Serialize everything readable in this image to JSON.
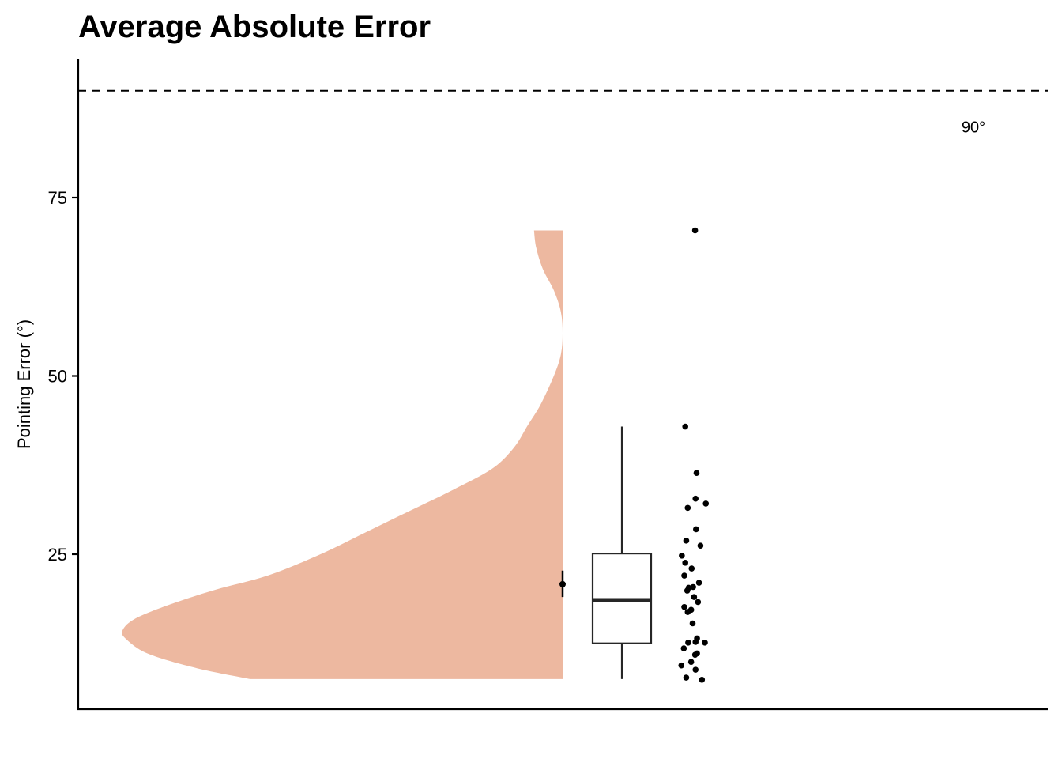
{
  "chart_data": {
    "type": "raincloud",
    "title": "Average Absolute Error",
    "xlabel": "",
    "ylabel": "Pointing Error (°)",
    "ylim": [
      4,
      95
    ],
    "yticks": [
      25,
      50,
      75
    ],
    "grid": false,
    "reference_line": {
      "y": 90,
      "label": "90°",
      "style": "dashed"
    },
    "colors": {
      "density_fill": "#EDB8A0",
      "points": "#000000",
      "box_stroke": "#262626"
    },
    "density_profile": [
      {
        "y": 7.5,
        "width": 0.71
      },
      {
        "y": 9.0,
        "width": 0.83
      },
      {
        "y": 11.0,
        "width": 0.94
      },
      {
        "y": 13.0,
        "width": 0.99
      },
      {
        "y": 14.3,
        "width": 1.0
      },
      {
        "y": 16.0,
        "width": 0.97
      },
      {
        "y": 18.0,
        "width": 0.89
      },
      {
        "y": 20.0,
        "width": 0.79
      },
      {
        "y": 22.0,
        "width": 0.67
      },
      {
        "y": 25.0,
        "width": 0.55
      },
      {
        "y": 28.0,
        "width": 0.45
      },
      {
        "y": 31.0,
        "width": 0.35
      },
      {
        "y": 34.0,
        "width": 0.25
      },
      {
        "y": 37.0,
        "width": 0.16
      },
      {
        "y": 40.0,
        "width": 0.11
      },
      {
        "y": 43.0,
        "width": 0.08
      },
      {
        "y": 46.0,
        "width": 0.05
      },
      {
        "y": 50.0,
        "width": 0.02
      },
      {
        "y": 53.0,
        "width": 0.004
      },
      {
        "y": 56.0,
        "width": 0.0
      },
      {
        "y": 59.0,
        "width": 0.004
      },
      {
        "y": 62.0,
        "width": 0.02
      },
      {
        "y": 65.0,
        "width": 0.045
      },
      {
        "y": 68.0,
        "width": 0.06
      },
      {
        "y": 70.4,
        "width": 0.065
      }
    ],
    "mean": {
      "value": 20.8,
      "ci": [
        19.0,
        22.7
      ]
    },
    "boxplot": {
      "min": 7.5,
      "q1": 12.5,
      "median": 18.6,
      "q3": 25.1,
      "max": 42.9
    },
    "points": [
      {
        "jitter": 0.3,
        "y": 70.4
      },
      {
        "jitter": 0.1,
        "y": 42.9
      },
      {
        "jitter": 0.33,
        "y": 36.4
      },
      {
        "jitter": 0.31,
        "y": 32.8
      },
      {
        "jitter": 0.52,
        "y": 32.1
      },
      {
        "jitter": 0.15,
        "y": 31.5
      },
      {
        "jitter": 0.32,
        "y": 28.5
      },
      {
        "jitter": 0.41,
        "y": 26.2
      },
      {
        "jitter": 0.12,
        "y": 26.9
      },
      {
        "jitter": 0.03,
        "y": 24.8
      },
      {
        "jitter": 0.1,
        "y": 23.8
      },
      {
        "jitter": 0.23,
        "y": 23.0
      },
      {
        "jitter": 0.08,
        "y": 22.0
      },
      {
        "jitter": 0.38,
        "y": 21.0
      },
      {
        "jitter": 0.17,
        "y": 20.3
      },
      {
        "jitter": 0.26,
        "y": 20.4
      },
      {
        "jitter": 0.14,
        "y": 19.9
      },
      {
        "jitter": 0.28,
        "y": 19.0
      },
      {
        "jitter": 0.36,
        "y": 18.3
      },
      {
        "jitter": 0.08,
        "y": 17.6
      },
      {
        "jitter": 0.22,
        "y": 17.2
      },
      {
        "jitter": 0.15,
        "y": 16.9
      },
      {
        "jitter": 0.25,
        "y": 15.3
      },
      {
        "jitter": 0.34,
        "y": 13.2
      },
      {
        "jitter": 0.16,
        "y": 12.6
      },
      {
        "jitter": 0.31,
        "y": 12.7
      },
      {
        "jitter": 0.5,
        "y": 12.6
      },
      {
        "jitter": 0.07,
        "y": 11.8
      },
      {
        "jitter": 0.34,
        "y": 11.1
      },
      {
        "jitter": 0.3,
        "y": 10.9
      },
      {
        "jitter": 0.22,
        "y": 9.9
      },
      {
        "jitter": 0.02,
        "y": 9.4
      },
      {
        "jitter": 0.31,
        "y": 8.8
      },
      {
        "jitter": 0.12,
        "y": 7.7
      },
      {
        "jitter": 0.44,
        "y": 7.4
      }
    ]
  }
}
